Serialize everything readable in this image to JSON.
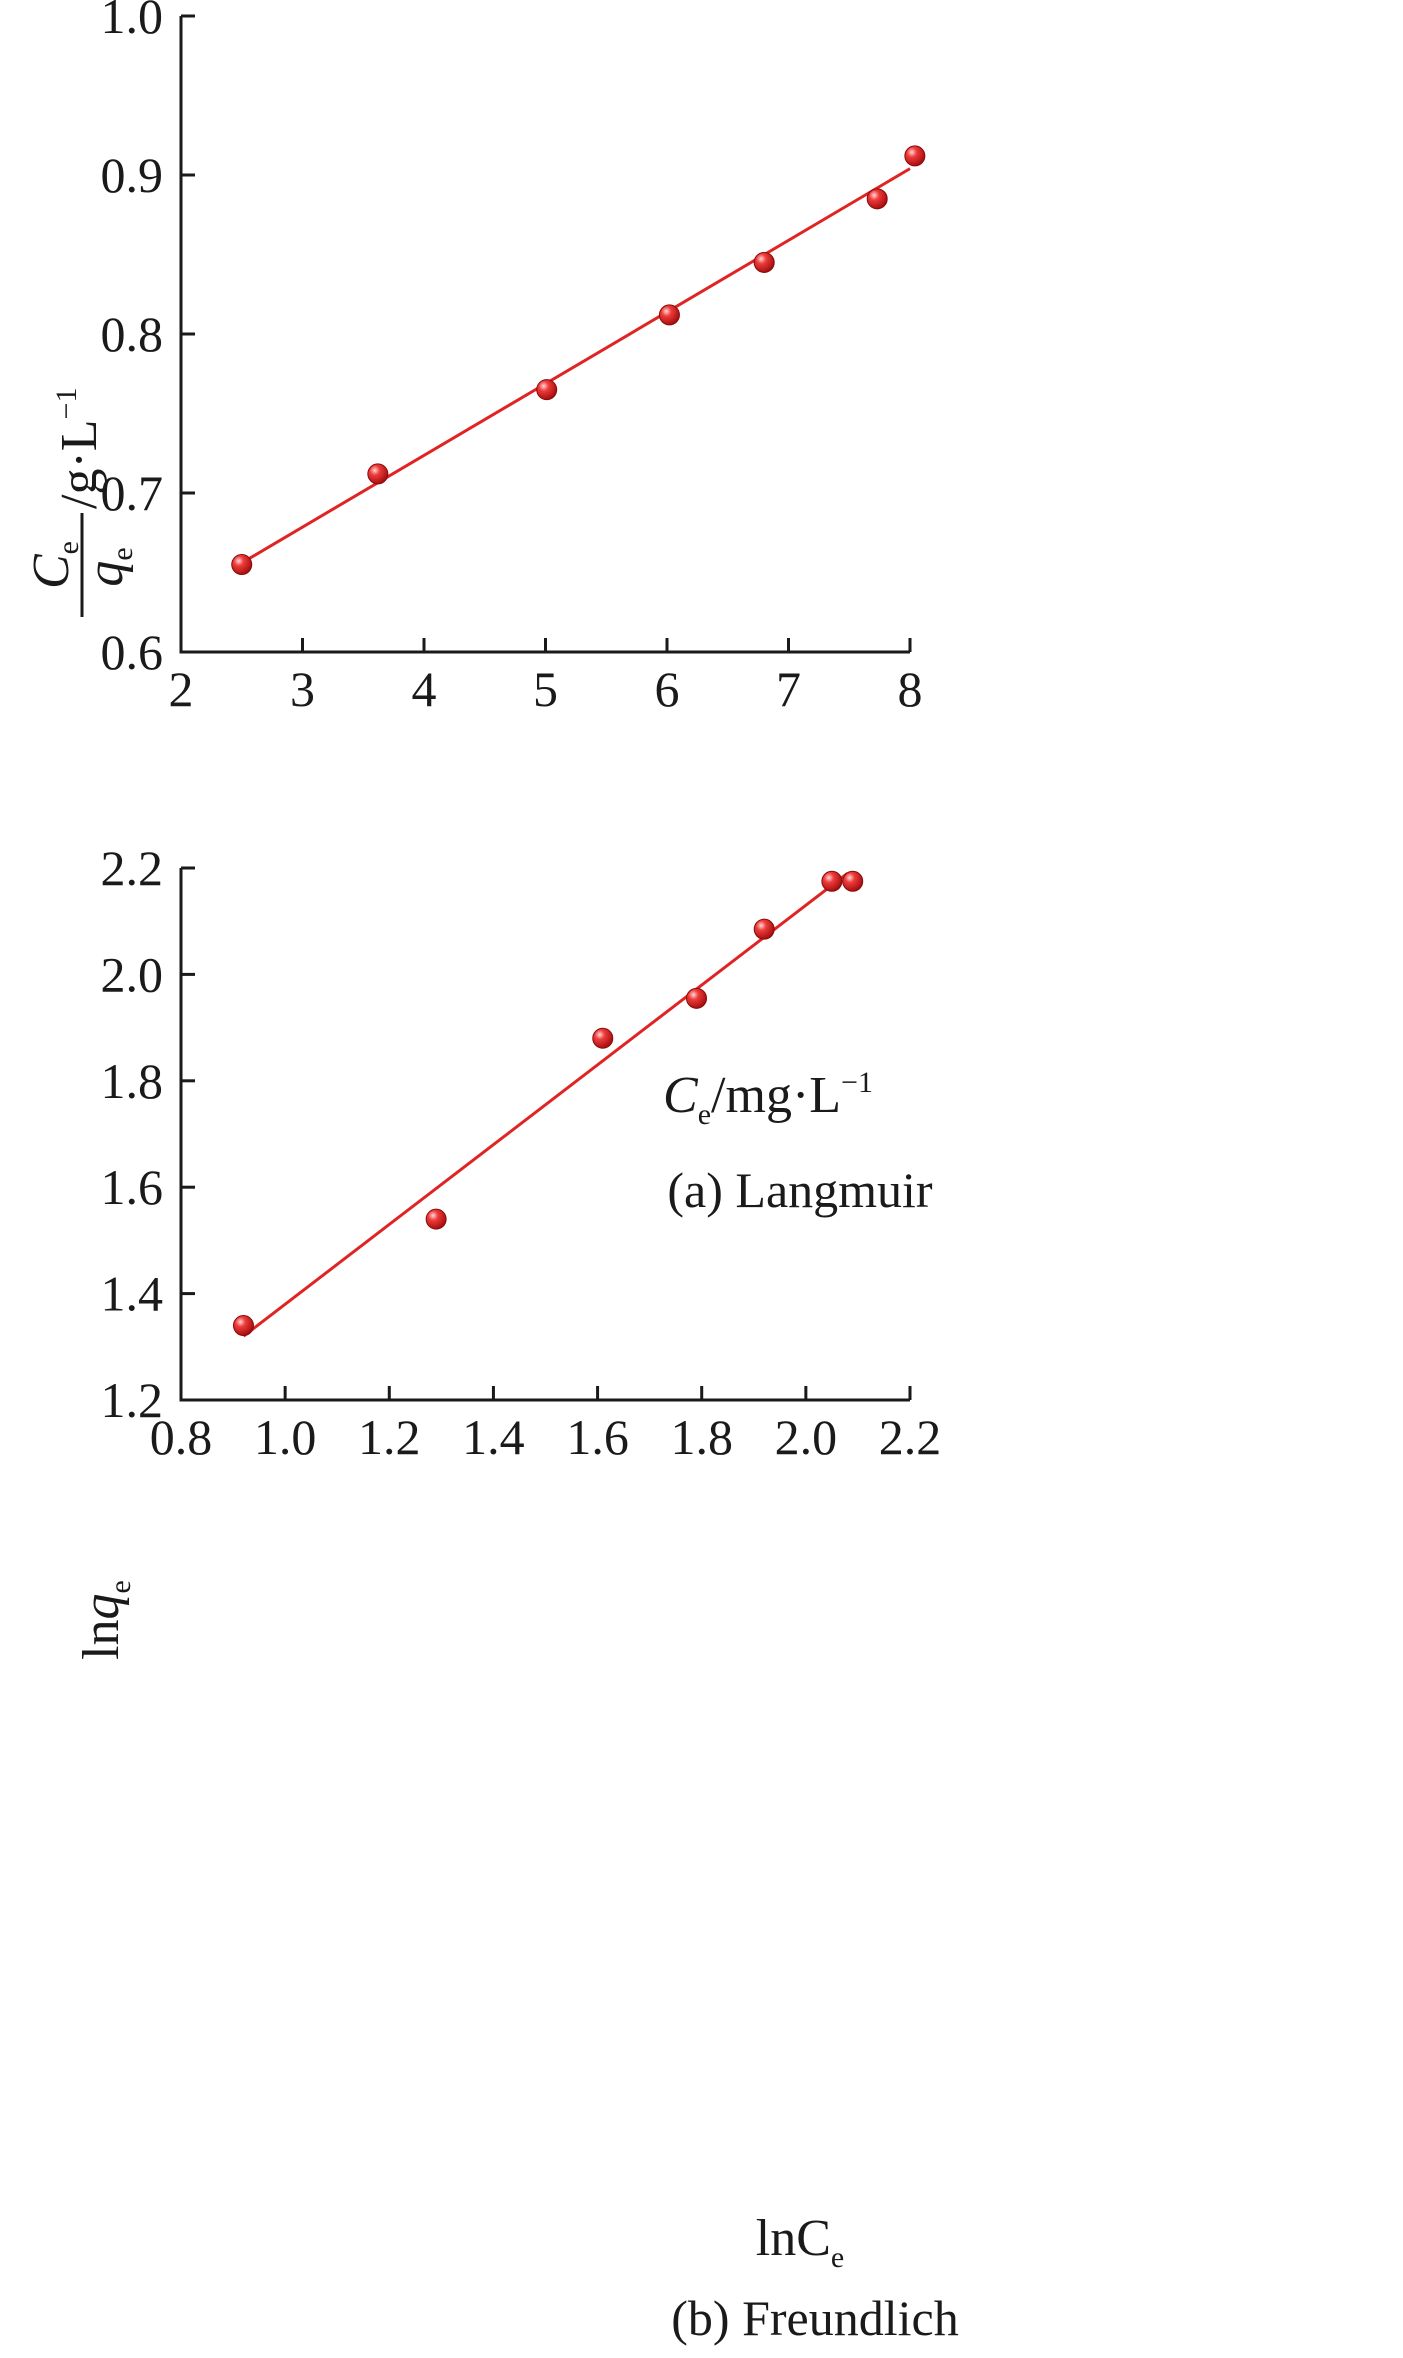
{
  "chart_data": [
    {
      "type": "scatter",
      "caption": "(a) Langmuir",
      "xlabel": {
        "main": "C",
        "sub": "e",
        "rest": "/mg·L",
        "sup": "−1"
      },
      "ylabel": {
        "num": "C",
        "num_sub": "e",
        "den": "q",
        "den_sub": "e",
        "rest": "/g·L",
        "sup": "−1"
      },
      "xlim": [
        2,
        8
      ],
      "ylim": [
        0.6,
        1.0
      ],
      "xticks": [
        "2",
        "3",
        "4",
        "5",
        "6",
        "7",
        "8"
      ],
      "yticks": [
        "0.6",
        "0.7",
        "0.8",
        "0.9",
        "1.0"
      ],
      "grid": false,
      "colors": {
        "points": "#e02424",
        "fit": "#e02424"
      },
      "series": [
        {
          "x": [
            2.5,
            3.62,
            5.01,
            6.02,
            6.8,
            7.73,
            8.04
          ],
          "y": [
            0.655,
            0.712,
            0.765,
            0.812,
            0.845,
            0.885,
            0.912
          ]
        }
      ],
      "fit_line": {
        "x": [
          2.5,
          8.0
        ],
        "y": [
          0.656,
          0.904
        ]
      }
    },
    {
      "type": "scatter",
      "caption": "(b) Freundlich",
      "xlabel": {
        "main": "lnC",
        "sub": "e",
        "rest": "",
        "sup": ""
      },
      "ylabel": {
        "main": "lnq",
        "sub": "e"
      },
      "xlim": [
        0.8,
        2.2
      ],
      "ylim": [
        1.2,
        2.2
      ],
      "xticks": [
        "0.8",
        "1.0",
        "1.2",
        "1.4",
        "1.6",
        "1.8",
        "2.0",
        "2.2"
      ],
      "yticks": [
        "1.2",
        "1.4",
        "1.6",
        "1.8",
        "2.0",
        "2.2"
      ],
      "grid": false,
      "colors": {
        "points": "#e02424",
        "fit": "#e02424"
      },
      "series": [
        {
          "x": [
            0.92,
            1.29,
            1.61,
            1.79,
            1.92,
            2.05,
            2.09
          ],
          "y": [
            1.34,
            1.54,
            1.88,
            1.955,
            2.085,
            2.175,
            2.175
          ]
        }
      ],
      "fit_line": {
        "x": [
          0.92,
          2.08
        ],
        "y": [
          1.32,
          2.19
        ]
      }
    }
  ]
}
